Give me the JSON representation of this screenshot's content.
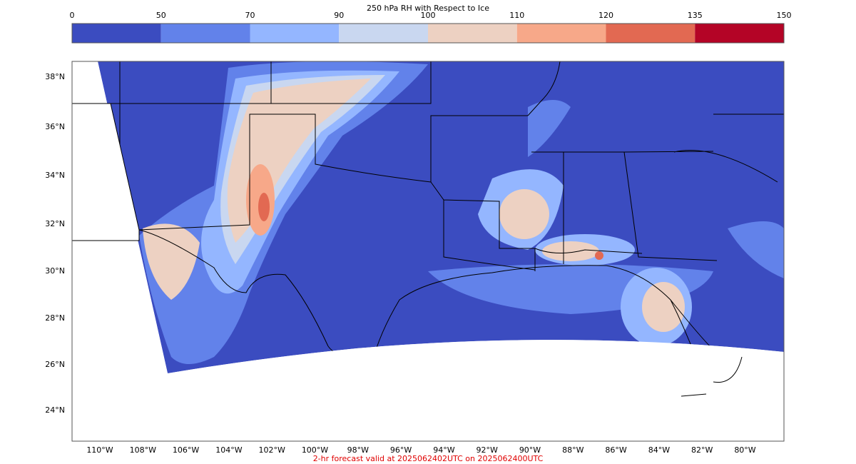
{
  "colorbar": {
    "title": "250 hPa RH with Respect to Ice",
    "ticks": [
      0,
      50,
      70,
      90,
      100,
      110,
      120,
      135,
      150
    ],
    "colors": [
      "#3b4cc0",
      "#6282ea",
      "#94b6ff",
      "#c9d7f0",
      "#edd1c2",
      "#f7a889",
      "#e26952",
      "#b40426"
    ]
  },
  "map": {
    "lat_labels": [
      "38°N",
      "36°N",
      "34°N",
      "32°N",
      "30°N",
      "28°N",
      "26°N",
      "24°N"
    ],
    "lon_labels": [
      "110°W",
      "108°W",
      "106°W",
      "104°W",
      "102°W",
      "100°W",
      "98°W",
      "96°W",
      "94°W",
      "92°W",
      "90°W",
      "88°W",
      "86°W",
      "84°W",
      "82°W",
      "80°W"
    ]
  },
  "footer": "2-hr forecast valid at 2025062402UTC on 2025062400UTC"
}
